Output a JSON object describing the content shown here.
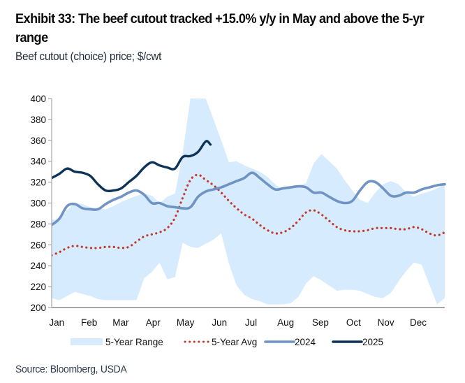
{
  "title": "Exhibit 33: The beef cutout tracked +15.0% y/y in May and above the 5-yr range",
  "subtitle": "Beef cutout (choice) price; $/cwt",
  "source": "Source: Bloomberg, USDA",
  "chart_data": {
    "type": "line",
    "title": "Exhibit 33: The beef cutout tracked +15.0% y/y in May and above the 5-yr range",
    "subtitle": "Beef cutout (choice) price; $/cwt",
    "xlabel": "",
    "ylabel": "",
    "x_unit": "week of year (0 = start of Jan, 52 = end of Dec)",
    "xlim": [
      0,
      51
    ],
    "ylim": [
      200,
      400
    ],
    "yticks": [
      200,
      220,
      240,
      260,
      280,
      300,
      320,
      340,
      360,
      380,
      400
    ],
    "xtick_labels": [
      "Jan",
      "Feb",
      "Mar",
      "Apr",
      "May",
      "Jun",
      "Jul",
      "Aug",
      "Sep",
      "Oct",
      "Nov",
      "Dec"
    ],
    "xtick_positions": [
      0.3,
      4.5,
      8.6,
      12.8,
      17.0,
      21.4,
      25.5,
      30.0,
      34.5,
      38.8,
      43.0,
      47.2
    ],
    "grid": false,
    "legend": "bottom",
    "colors": {
      "range": "#d6ebfd",
      "avg": "#c0392b",
      "y2024": "#6f93c3",
      "y2025": "#0d3458",
      "axis": "#a6a6a6"
    },
    "legend_entries": [
      {
        "key": "range",
        "label": "5-Year Range"
      },
      {
        "key": "avg",
        "label": "5-Year Avg"
      },
      {
        "key": "y2024",
        "label": "2024"
      },
      {
        "key": "y2025",
        "label": "2025"
      }
    ],
    "series": [
      {
        "name": "5-Year Range",
        "key": "range",
        "type": "area",
        "x": [
          0,
          1,
          2,
          3,
          4,
          5,
          6,
          7,
          8,
          9,
          10,
          11,
          12,
          13,
          14,
          15,
          16,
          17,
          18,
          19,
          20,
          21,
          22,
          23,
          24,
          25,
          26,
          27,
          28,
          29,
          30,
          31,
          32,
          33,
          34,
          35,
          36,
          37,
          38,
          39,
          40,
          41,
          42,
          43,
          44,
          45,
          46,
          47,
          48,
          49,
          50,
          51
        ],
        "upper": [
          284,
          284,
          293,
          300,
          299,
          296,
          295,
          294,
          297,
          301,
          304,
          307,
          309,
          307,
          300,
          306,
          309,
          348,
          400,
          400,
          400,
          380,
          360,
          339,
          340,
          336,
          333,
          330,
          325,
          318,
          313,
          315,
          317,
          319,
          338,
          347,
          340,
          333,
          322,
          312,
          303,
          300,
          310,
          318,
          321,
          318,
          310,
          306,
          309,
          311,
          314,
          318
        ],
        "lower": [
          209,
          207,
          211,
          215,
          213,
          211,
          208,
          207,
          207,
          207,
          207,
          207,
          228,
          234,
          243,
          227,
          229,
          262,
          258,
          257,
          261,
          265,
          271,
          242,
          221,
          212,
          208,
          206,
          203,
          203,
          203,
          204,
          210,
          223,
          230,
          226,
          221,
          216,
          217,
          217,
          216,
          213,
          210,
          209,
          214,
          225,
          235,
          243,
          241,
          222,
          203,
          209
        ]
      },
      {
        "name": "5-Year Avg",
        "key": "avg",
        "type": "line-dotted",
        "x": [
          0,
          1,
          2,
          3,
          4,
          5,
          6,
          7,
          8,
          9,
          10,
          11,
          12,
          13,
          14,
          15,
          16,
          17,
          18,
          19,
          20,
          21,
          22,
          23,
          24,
          25,
          26,
          27,
          28,
          29,
          30,
          31,
          32,
          33,
          34,
          35,
          36,
          37,
          38,
          39,
          40,
          41,
          42,
          43,
          44,
          45,
          46,
          47,
          48,
          49,
          50,
          51
        ],
        "values": [
          250,
          253,
          257,
          259,
          258,
          257,
          257,
          258,
          258,
          257,
          258,
          263,
          268,
          270,
          272,
          276,
          286,
          305,
          322,
          327,
          322,
          317,
          310,
          302,
          295,
          289,
          285,
          279,
          274,
          271,
          272,
          276,
          283,
          291,
          293,
          289,
          283,
          277,
          274,
          273,
          273,
          274,
          276,
          276,
          276,
          275,
          275,
          277,
          275,
          271,
          269,
          272
        ]
      },
      {
        "name": "2024",
        "key": "y2024",
        "type": "line",
        "x": [
          0,
          1,
          2,
          3,
          4,
          5,
          6,
          7,
          8,
          9,
          10,
          11,
          12,
          13,
          14,
          15,
          16,
          17,
          18,
          19,
          20,
          21,
          22,
          23,
          24,
          25,
          26,
          27,
          28,
          29,
          30,
          31,
          32,
          33,
          34,
          35,
          36,
          37,
          38,
          39,
          40,
          41,
          42,
          43,
          44,
          45,
          46,
          47,
          48,
          49,
          50,
          51
        ],
        "values": [
          279,
          285,
          297,
          299,
          295,
          294,
          294,
          299,
          303,
          306,
          310,
          312,
          308,
          300,
          300,
          297,
          296,
          295,
          296,
          306,
          311,
          313,
          315,
          318,
          321,
          324,
          329,
          324,
          318,
          313,
          314,
          315,
          316,
          315,
          310,
          310,
          306,
          302,
          300,
          302,
          312,
          320,
          320,
          314,
          307,
          307,
          310,
          310,
          313,
          315,
          317,
          318
        ]
      },
      {
        "name": "2025",
        "key": "y2025",
        "type": "line",
        "x": [
          0,
          1,
          2,
          3,
          4,
          5,
          6,
          7,
          8,
          9,
          10,
          11,
          12,
          13,
          14,
          15,
          16,
          17,
          18,
          19,
          20,
          20.6
        ],
        "values": [
          324,
          328,
          333,
          330,
          329,
          326,
          318,
          312,
          312,
          314,
          320,
          326,
          334,
          339,
          336,
          334,
          333,
          344,
          345,
          349,
          359,
          356
        ]
      }
    ]
  }
}
